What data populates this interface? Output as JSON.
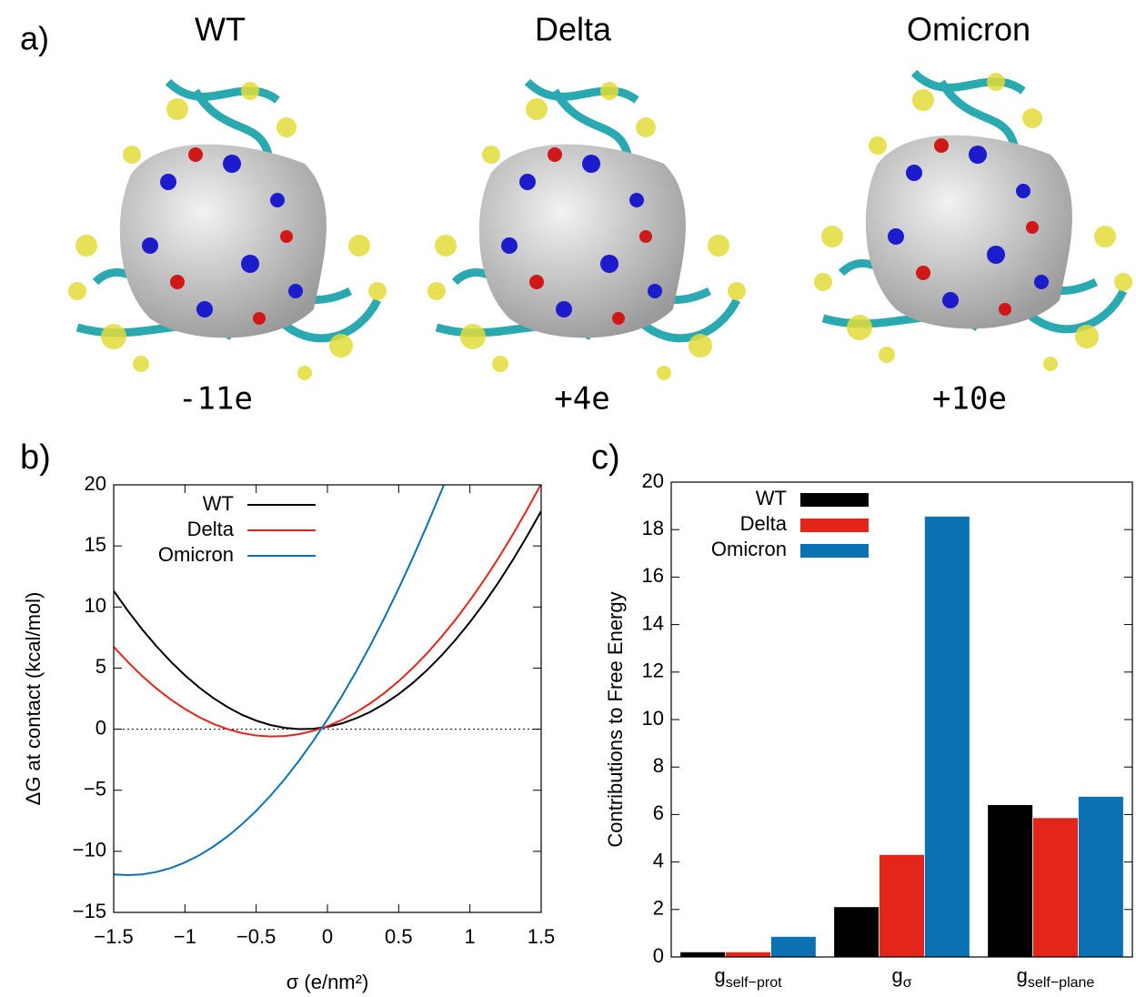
{
  "panel_a": {
    "label": "a)",
    "structures": [
      {
        "name": "WT",
        "charge": "-11e"
      },
      {
        "name": "Delta",
        "charge": "+4e"
      },
      {
        "name": "Omicron",
        "charge": "+10e"
      }
    ]
  },
  "chart_data": [
    {
      "type": "line",
      "label": "b)",
      "xlabel": "σ (e/nm²)",
      "ylabel": "ΔG at contact (kcal/mol)",
      "x": [
        -1.5,
        -1.4,
        -1.3,
        -1.2,
        -1.1,
        -1.0,
        -0.9,
        -0.8,
        -0.7,
        -0.6,
        -0.5,
        -0.4,
        -0.3,
        -0.2,
        -0.1,
        0,
        0.1,
        0.2,
        0.3,
        0.4,
        0.5,
        0.6,
        0.7,
        0.8,
        0.9,
        1.0,
        1.1,
        1.2,
        1.3,
        1.4,
        1.5
      ],
      "series": [
        {
          "name": "WT",
          "color": "#000000",
          "values": [
            11.32,
            9.68,
            8.17,
            6.79,
            5.54,
            4.41,
            3.41,
            2.54,
            1.8,
            1.18,
            0.7,
            0.34,
            0.11,
            0.01,
            0.03,
            0.18,
            0.47,
            0.88,
            1.41,
            2.08,
            2.87,
            3.79,
            4.84,
            6.02,
            7.33,
            8.76,
            10.32,
            12.01,
            13.83,
            15.78,
            17.85
          ]
        },
        {
          "name": "Delta",
          "color": "#e3251a",
          "values": [
            6.74,
            5.49,
            4.35,
            3.33,
            2.43,
            1.65,
            0.98,
            0.43,
            0.0,
            -0.32,
            -0.52,
            -0.6,
            -0.56,
            -0.41,
            -0.14,
            0.24,
            0.75,
            1.37,
            2.11,
            2.96,
            3.93,
            5.02,
            6.22,
            7.55,
            8.98,
            10.54,
            12.21,
            14.0,
            15.91,
            17.94,
            20.08
          ]
        },
        {
          "name": "Omicron",
          "color": "#0a72b0",
          "values": [
            -11.89,
            -11.95,
            -11.89,
            -11.69,
            -11.37,
            -10.91,
            -10.33,
            -9.61,
            -8.77,
            -7.79,
            -6.69,
            -5.45,
            -4.09,
            -2.59,
            -0.97,
            0.79,
            2.68,
            4.69,
            6.84,
            9.11,
            11.52,
            14.05,
            16.72,
            19.51,
            22.44,
            null,
            null,
            null,
            null,
            null,
            null
          ]
        }
      ],
      "xlim": [
        -1.5,
        1.5
      ],
      "xticks": [
        {
          "value": -1.5,
          "label": "−1.5"
        },
        {
          "value": -1,
          "label": "−1"
        },
        {
          "value": -0.5,
          "label": "−0.5"
        },
        0,
        0.5,
        1,
        1.5
      ],
      "ylim": [
        -15,
        20
      ],
      "yticks": [
        {
          "value": -15,
          "label": "−15"
        },
        {
          "value": -10,
          "label": "−10"
        },
        {
          "value": -5,
          "label": "−5"
        },
        0,
        5,
        10,
        15,
        20
      ],
      "zero_line": true,
      "legend": "upper-left"
    },
    {
      "type": "bar",
      "label": "c)",
      "ylabel": "Contributions to Free Energy",
      "categories": [
        {
          "base": "g",
          "sub": "self−prot"
        },
        {
          "base": "g",
          "sub": "σ"
        },
        {
          "base": "g",
          "sub": "self−plane"
        }
      ],
      "series": [
        {
          "name": "WT",
          "color": "#000000",
          "values": [
            0.2,
            2.1,
            6.4
          ]
        },
        {
          "name": "Delta",
          "color": "#e3251a",
          "values": [
            0.2,
            4.3,
            5.85
          ]
        },
        {
          "name": "Omicron",
          "color": "#0a72b0",
          "values": [
            0.85,
            18.55,
            6.75
          ]
        }
      ],
      "ylim": [
        0,
        20
      ],
      "yticks": [
        0,
        2,
        4,
        6,
        8,
        10,
        12,
        14,
        16,
        18,
        20
      ],
      "legend": "upper-left"
    }
  ]
}
